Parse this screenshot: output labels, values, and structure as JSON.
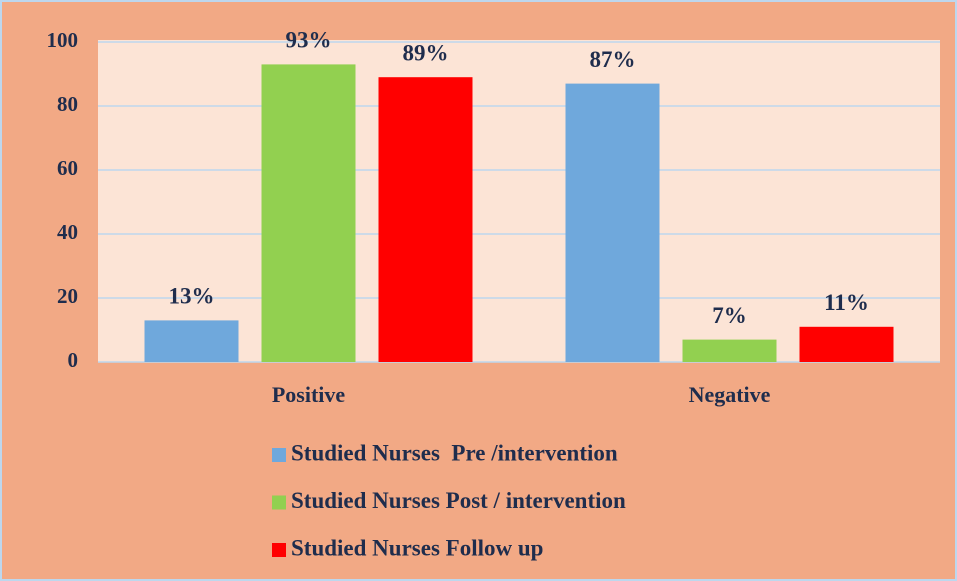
{
  "chart_data": {
    "type": "bar",
    "categories": [
      "Positive",
      "Negative"
    ],
    "series": [
      {
        "name": "Studied Nurses  Pre /intervention",
        "color": "#6fa8dc",
        "values": [
          13,
          87
        ],
        "value_labels": [
          "13%",
          "87%"
        ]
      },
      {
        "name": "Studied Nurses Post / intervention",
        "color": "#92d050",
        "values": [
          93,
          7
        ],
        "value_labels": [
          "93%",
          "7%"
        ]
      },
      {
        "name": "Studied Nurses Follow up",
        "color": "#ff0000",
        "values": [
          89,
          11
        ],
        "value_labels": [
          "89%",
          "11%"
        ]
      }
    ],
    "ylim": [
      0,
      100
    ],
    "yticks": [
      0,
      20,
      40,
      60,
      80,
      100
    ],
    "grid": true,
    "legend": "bottom"
  }
}
